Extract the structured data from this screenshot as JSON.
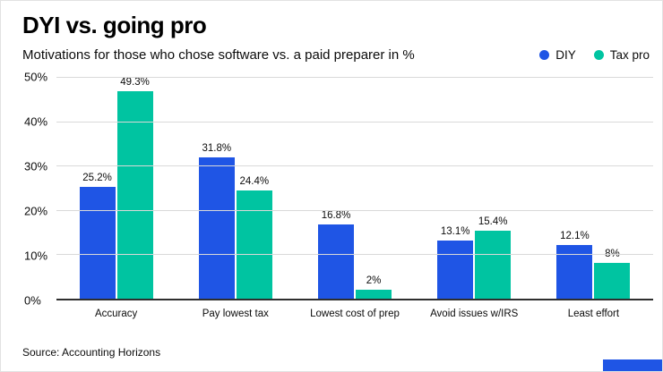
{
  "header": {
    "title": "DYI vs. going pro",
    "subtitle": "Motivations for those who chose software vs. a paid preparer in %"
  },
  "legend": [
    {
      "label": "DIY",
      "color": "#1f55e5"
    },
    {
      "label": "Tax pro",
      "color": "#00c4a1"
    }
  ],
  "chart_data": {
    "type": "bar",
    "title": "DYI vs. going pro",
    "subtitle": "Motivations for those who chose software vs. a paid preparer in %",
    "categories": [
      "Accuracy",
      "Pay lowest tax",
      "Lowest cost of prep",
      "Avoid issues w/IRS",
      "Least effort"
    ],
    "series": [
      {
        "name": "DIY",
        "color": "#1f55e5",
        "values": [
          25.2,
          31.8,
          16.8,
          13.1,
          12.1
        ],
        "labels": [
          "25.2%",
          "31.8%",
          "16.8%",
          "13.1%",
          "12.1%"
        ]
      },
      {
        "name": "Tax pro",
        "color": "#00c4a1",
        "values": [
          49.3,
          24.4,
          2,
          15.4,
          8
        ],
        "labels": [
          "49.3%",
          "24.4%",
          "2%",
          "15.4%",
          "8%"
        ]
      }
    ],
    "ylim": [
      0,
      50
    ],
    "yticks": [
      "50%",
      "40%",
      "30%",
      "20%",
      "10%",
      "0%"
    ],
    "grid": true,
    "legend_position": "top-right"
  },
  "footer": {
    "source": "Source: Accounting Horizons"
  },
  "colors": {
    "accent": "#1f55e5",
    "gridline": "#d9d9d9",
    "axis": "#2e2e2e"
  }
}
